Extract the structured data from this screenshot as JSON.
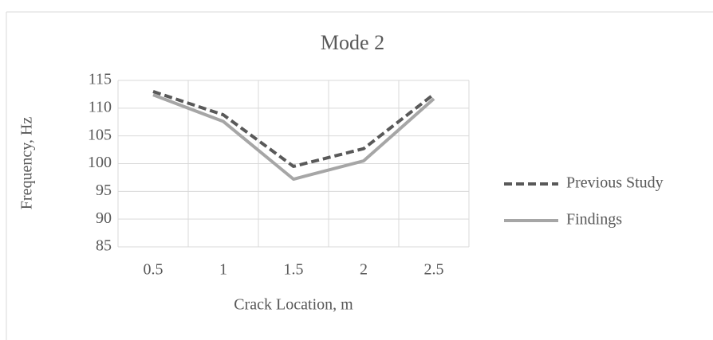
{
  "chart_data": {
    "type": "line",
    "title": "Mode 2",
    "x_label": "Crack Location, m",
    "y_label": "Frequency, Hz",
    "categories": [
      "0.5",
      "1",
      "1.5",
      "2",
      "2.5"
    ],
    "series": [
      {
        "name": "Previous Study",
        "color": "#595959",
        "dashed": true,
        "values": [
          113,
          108.8,
          99.5,
          102.7,
          112.5
        ]
      },
      {
        "name": "Findings",
        "color": "#a6a6a6",
        "dashed": false,
        "values": [
          112.4,
          107.6,
          97.2,
          100.5,
          111.7
        ]
      }
    ],
    "ylim": [
      85,
      115
    ],
    "yticks": [
      85,
      90,
      95,
      100,
      105,
      110,
      115
    ],
    "grid": true,
    "legend": "right"
  }
}
